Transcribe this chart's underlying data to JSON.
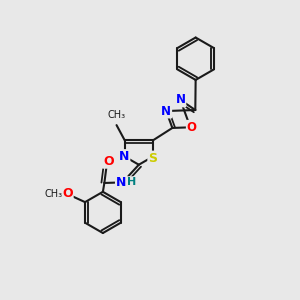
{
  "bg_color": "#e8e8e8",
  "bond_color": "#1a1a1a",
  "bond_width": 1.5,
  "atom_colors": {
    "N": "#0000ff",
    "O": "#ff0000",
    "S": "#cccc00",
    "H": "#008080"
  },
  "font_size": 9
}
